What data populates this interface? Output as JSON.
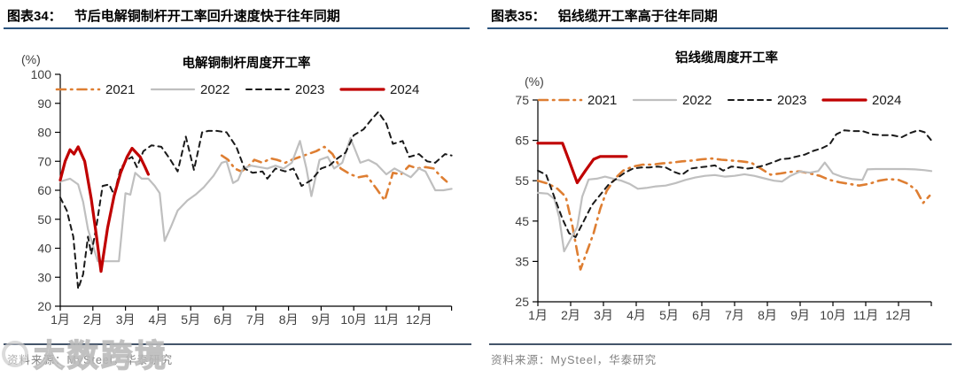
{
  "figures": [
    {
      "header_label": "图表34：",
      "header_text": "节后电解铜制杆开工率回升速度快于往年同期",
      "source": "资料来源：MySteel，华泰研究"
    },
    {
      "header_label": "图表35：",
      "header_text": "铝线缆开工率高于往年同期",
      "source": "资料来源：MySteel，华泰研究"
    }
  ],
  "watermark": {
    "text": "大数跨境"
  },
  "chart_data": [
    {
      "type": "line",
      "title": "电解铜制杆周度开工率",
      "unit": "(%)",
      "ylim": [
        20,
        100
      ],
      "y_ticks": [
        20,
        30,
        40,
        50,
        60,
        70,
        80,
        90,
        100
      ],
      "x_tick_labels": [
        "1月",
        "2月",
        "3月",
        "4月",
        "5月",
        "6月",
        "7月",
        "8月",
        "9月",
        "10月",
        "11月",
        "12月"
      ],
      "x_range": [
        1,
        13
      ],
      "grid": false,
      "legend_position": "top-inside",
      "series": [
        {
          "name": "2021",
          "color": "#DE7E32",
          "style": "dashdot",
          "width": 2.6,
          "x": [
            5.95,
            6.15,
            6.35,
            6.55,
            6.75,
            6.95,
            7.2,
            7.45,
            7.65,
            7.9,
            8.1,
            8.35,
            8.6,
            8.85,
            9.1,
            9.35,
            9.6,
            9.9,
            10.15,
            10.4,
            10.7,
            10.95,
            11.2,
            11.45,
            11.7,
            11.95,
            12.2,
            12.45,
            12.65,
            12.85
          ],
          "values": [
            72,
            70.5,
            67.5,
            66.5,
            68,
            70.5,
            69.5,
            71,
            70.5,
            69.5,
            70.5,
            71.5,
            72.5,
            73.5,
            75,
            72.5,
            67.5,
            65.5,
            64.5,
            65,
            60.5,
            56.5,
            66,
            65.5,
            68.5,
            67.5,
            68,
            67.5,
            65,
            63
          ]
        },
        {
          "name": "2022",
          "color": "#BFBFBF",
          "style": "solid",
          "width": 2.2,
          "x": [
            1.0,
            1.3,
            1.55,
            1.7,
            1.85,
            2.0,
            2.15,
            2.8,
            3.0,
            3.15,
            3.3,
            3.5,
            3.7,
            3.9,
            4.05,
            4.2,
            4.4,
            4.6,
            4.9,
            5.15,
            5.4,
            5.7,
            5.95,
            6.1,
            6.3,
            6.45,
            6.6,
            6.85,
            7.1,
            7.35,
            7.6,
            7.85,
            8.1,
            8.35,
            8.55,
            8.7,
            8.95,
            9.2,
            9.4,
            9.65,
            9.9,
            10.2,
            10.45,
            10.7,
            11.0,
            11.25,
            11.5,
            11.75,
            12.0,
            12.2,
            12.5,
            12.75,
            13.0
          ],
          "values": [
            63,
            64,
            62,
            56,
            46.5,
            41,
            35.5,
            35.5,
            59,
            58.5,
            66,
            64,
            64,
            61.5,
            59,
            42.5,
            47.5,
            53,
            56.5,
            58.5,
            61,
            65,
            69.5,
            70,
            62.5,
            63.5,
            67.5,
            68.5,
            68,
            67.5,
            68.5,
            67.5,
            69.5,
            77,
            67.5,
            58,
            70.5,
            71.5,
            67.5,
            69.5,
            78,
            69.5,
            70.5,
            69,
            65.5,
            67.5,
            66,
            64.5,
            67.5,
            66.5,
            60,
            60,
            60.5
          ]
        },
        {
          "name": "2023",
          "color": "#1A1A1A",
          "style": "dashed",
          "width": 2,
          "x": [
            1.0,
            1.2,
            1.4,
            1.55,
            1.7,
            1.85,
            1.95,
            2.1,
            2.3,
            2.5,
            2.65,
            2.85,
            3.05,
            3.2,
            3.35,
            3.55,
            3.8,
            4.1,
            4.35,
            4.6,
            4.85,
            5.1,
            5.35,
            5.55,
            5.8,
            6.1,
            6.4,
            6.65,
            6.9,
            7.2,
            7.35,
            7.6,
            7.9,
            8.15,
            8.4,
            8.7,
            9.0,
            9.25,
            9.5,
            9.75,
            10.0,
            10.3,
            10.55,
            10.75,
            11.0,
            11.2,
            11.5,
            11.7,
            12.0,
            12.25,
            12.5,
            12.8,
            13.0
          ],
          "values": [
            57.5,
            53,
            44,
            26,
            31,
            44,
            38,
            47,
            61.5,
            62,
            58.5,
            67.5,
            70.5,
            71.5,
            68,
            73.5,
            75.5,
            75,
            71,
            66.5,
            78.5,
            67,
            80,
            80.5,
            80.5,
            80,
            75,
            67.5,
            66,
            66.5,
            64,
            67.5,
            66.5,
            67.5,
            61.5,
            63.5,
            67.5,
            68.5,
            71,
            73,
            79,
            81,
            84.5,
            87,
            83,
            76,
            77,
            71.5,
            72.5,
            70,
            69.5,
            72.5,
            72
          ]
        },
        {
          "name": "2024",
          "color": "#C00000",
          "style": "solid",
          "width": 3.2,
          "x": [
            1.0,
            1.15,
            1.3,
            1.42,
            1.55,
            1.75,
            1.95,
            2.1,
            2.25,
            2.45,
            2.65,
            2.85,
            3.05,
            3.2,
            3.45,
            3.6,
            3.7
          ],
          "values": [
            63.5,
            70,
            74,
            72.5,
            75,
            70,
            57,
            45,
            32,
            47,
            58,
            66,
            71.5,
            74.5,
            71.5,
            68,
            65.5
          ]
        }
      ]
    },
    {
      "type": "line",
      "title": "铝线缆周度开工率",
      "unit": "(%)",
      "ylim": [
        25,
        75
      ],
      "y_ticks": [
        25,
        35,
        45,
        55,
        65,
        75
      ],
      "x_tick_labels": [
        "1月",
        "2月",
        "3月",
        "4月",
        "5月",
        "6月",
        "7月",
        "8月",
        "9月",
        "10月",
        "11月",
        "12月"
      ],
      "x_range": [
        1,
        13
      ],
      "grid": false,
      "legend_position": "top-inside",
      "series": [
        {
          "name": "2021",
          "color": "#DE7E32",
          "style": "dashdot",
          "width": 2.6,
          "x": [
            1.0,
            1.3,
            1.6,
            1.85,
            2.05,
            2.3,
            2.5,
            2.7,
            2.9,
            3.1,
            3.35,
            3.6,
            3.9,
            4.2,
            4.5,
            4.8,
            5.1,
            5.4,
            5.7,
            6.0,
            6.3,
            6.6,
            6.9,
            7.2,
            7.5,
            7.8,
            8.1,
            8.4,
            8.7,
            9.0,
            9.3,
            9.6,
            9.9,
            10.2,
            10.5,
            10.8,
            11.1,
            11.4,
            11.7,
            12.0,
            12.3,
            12.55,
            12.75,
            12.95
          ],
          "values": [
            55,
            54.3,
            53,
            51,
            44,
            33,
            37.5,
            42,
            48,
            52.5,
            55.5,
            57.5,
            58.5,
            59,
            59,
            59.3,
            59.5,
            59.8,
            60,
            60.3,
            60.5,
            60.2,
            60,
            59.8,
            59.5,
            58,
            56.5,
            56.8,
            57.2,
            57.3,
            56.8,
            56.2,
            55.2,
            54.6,
            54.2,
            53.8,
            54.2,
            55,
            55.4,
            55.2,
            54.2,
            52.5,
            49.5,
            51.3
          ]
        },
        {
          "name": "2022",
          "color": "#BFBFBF",
          "style": "solid",
          "width": 2.2,
          "x": [
            1.0,
            1.3,
            1.5,
            1.65,
            1.8,
            2.0,
            2.2,
            2.35,
            2.55,
            2.8,
            3.05,
            3.3,
            3.55,
            3.8,
            4.05,
            4.3,
            4.6,
            4.9,
            5.2,
            5.5,
            5.8,
            6.1,
            6.4,
            6.7,
            7.0,
            7.3,
            7.6,
            7.9,
            8.2,
            8.45,
            8.7,
            9.0,
            9.3,
            9.55,
            9.75,
            10.0,
            10.3,
            10.6,
            10.9,
            11.05,
            11.3,
            11.6,
            11.9,
            12.2,
            12.5,
            12.8,
            13.0
          ],
          "values": [
            52,
            51.8,
            50.5,
            46,
            37.5,
            40.5,
            43.5,
            51,
            55.3,
            55.5,
            56,
            55.5,
            55,
            54.2,
            53,
            53.2,
            53.6,
            53.8,
            54.4,
            55.2,
            55.8,
            56.2,
            56.4,
            56,
            56.2,
            56.6,
            56.2,
            55.6,
            55,
            54.8,
            56.2,
            57.3,
            57,
            57.4,
            59.5,
            56.8,
            55.9,
            55.4,
            55.2,
            57.8,
            57.9,
            57.9,
            57.9,
            57.9,
            57.8,
            57.6,
            57.4
          ]
        },
        {
          "name": "2023",
          "color": "#1A1A1A",
          "style": "dashed",
          "width": 2,
          "x": [
            1.0,
            1.25,
            1.5,
            1.75,
            1.95,
            2.15,
            2.4,
            2.65,
            2.9,
            3.15,
            3.4,
            3.65,
            3.9,
            4.15,
            4.4,
            4.65,
            4.9,
            5.15,
            5.4,
            5.65,
            5.9,
            6.15,
            6.4,
            6.65,
            6.9,
            7.15,
            7.4,
            7.65,
            7.9,
            8.15,
            8.4,
            8.65,
            8.9,
            9.15,
            9.4,
            9.65,
            9.9,
            10.1,
            10.35,
            10.6,
            10.9,
            11.2,
            11.5,
            11.8,
            12.1,
            12.35,
            12.6,
            12.8,
            13.0
          ],
          "values": [
            57.5,
            56.5,
            51,
            45.5,
            42,
            41,
            45,
            49,
            51.5,
            54,
            55.5,
            57,
            58,
            58.3,
            58.3,
            58.5,
            58.3,
            57.2,
            56.5,
            58,
            58.3,
            58.5,
            58.8,
            57.5,
            58.5,
            58.3,
            58,
            58.3,
            58.8,
            59.5,
            60.3,
            60.5,
            61,
            61.5,
            62.4,
            63,
            64,
            66.5,
            67.5,
            67.3,
            67.3,
            66.5,
            66.3,
            66.3,
            65.8,
            66.8,
            67.5,
            67,
            65
          ]
        },
        {
          "name": "2024",
          "color": "#C00000",
          "style": "solid",
          "width": 3.2,
          "x": [
            1.0,
            1.4,
            1.75,
            1.95,
            2.2,
            2.45,
            2.7,
            2.9,
            3.2,
            3.5,
            3.7
          ],
          "values": [
            64.3,
            64.3,
            64.3,
            60,
            54.5,
            57.5,
            60.3,
            61,
            61,
            61,
            61
          ]
        }
      ]
    }
  ]
}
